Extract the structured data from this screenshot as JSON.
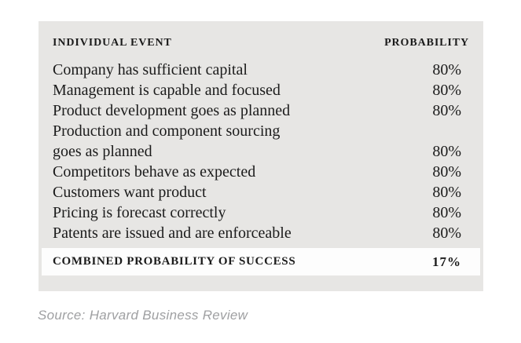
{
  "chart_data": {
    "type": "table",
    "columns": [
      "INDIVIDUAL EVENT",
      "PROBABILITY"
    ],
    "rows": [
      {
        "event": "Company has sufficient capital",
        "probability": "80%"
      },
      {
        "event": "Management is capable and focused",
        "probability": "80%"
      },
      {
        "event": "Product development goes as planned",
        "probability": "80%"
      },
      {
        "event": "Production and component sourcing goes as planned",
        "event_lines": [
          "Production and component sourcing",
          "goes as planned"
        ],
        "probability": "80%"
      },
      {
        "event": "Competitors behave as expected",
        "probability": "80%"
      },
      {
        "event": "Customers want product",
        "probability": "80%"
      },
      {
        "event": "Pricing is forecast correctly",
        "probability": "80%"
      },
      {
        "event": "Patents are issued and are enforceable",
        "probability": "80%"
      }
    ],
    "footer": {
      "event": "COMBINED PROBABILITY OF SUCCESS",
      "probability": "17%"
    },
    "source": "Source: Harvard Business Review"
  },
  "colors": {
    "table_background": "#e7e6e4",
    "highlight_background": "#fdfdfd",
    "text": "#1b1b1b",
    "source_text": "#9fa0a2"
  }
}
